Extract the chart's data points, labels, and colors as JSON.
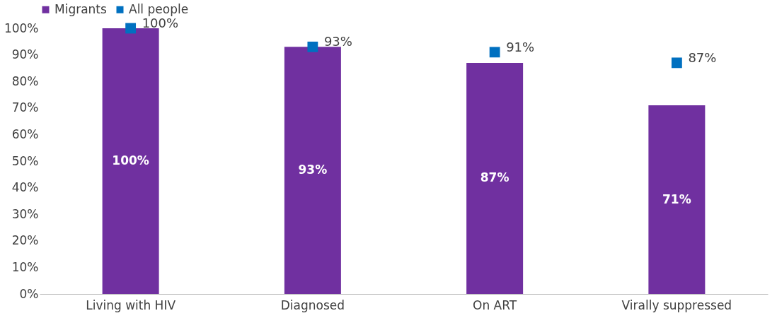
{
  "chart_data": {
    "type": "bar",
    "categories": [
      "Living with HIV",
      "Diagnosed",
      "On ART",
      "Virally suppressed"
    ],
    "series": [
      {
        "name": "Migrants",
        "color": "#7030a0",
        "values": [
          100,
          93,
          87,
          71
        ],
        "value_labels": [
          "100%",
          "93%",
          "87%",
          "71%"
        ]
      },
      {
        "name": "All people",
        "type": "scatter",
        "color": "#0070c0",
        "values": [
          100,
          93,
          91,
          87
        ],
        "value_labels": [
          "100%",
          "93%",
          "91%",
          "87%"
        ]
      }
    ],
    "ylim": [
      0,
      100
    ],
    "yticks": [
      {
        "value": 0,
        "label": "0%"
      },
      {
        "value": 10,
        "label": "10%"
      },
      {
        "value": 20,
        "label": "20%"
      },
      {
        "value": 30,
        "label": "30%"
      },
      {
        "value": 40,
        "label": "40%"
      },
      {
        "value": 50,
        "label": "50%"
      },
      {
        "value": 60,
        "label": "60%"
      },
      {
        "value": 70,
        "label": "70%"
      },
      {
        "value": 80,
        "label": "80%"
      },
      {
        "value": 90,
        "label": "90%"
      },
      {
        "value": 100,
        "label": "100%"
      }
    ],
    "grid": false,
    "legend": "top",
    "marker": "square"
  }
}
